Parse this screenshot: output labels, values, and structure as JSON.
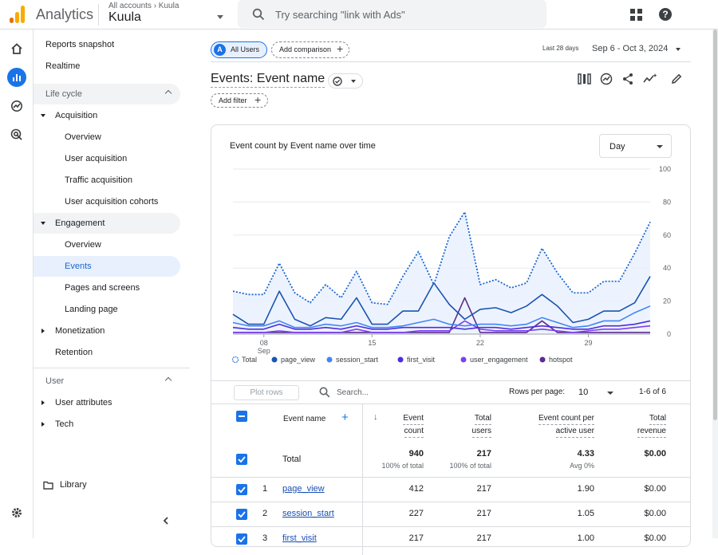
{
  "app": {
    "title": "Analytics",
    "breadcrumb": "All accounts › Kuula",
    "property": "Kuula"
  },
  "search": {
    "placeholder": "Try searching \"link with Ads\""
  },
  "sidebar": {
    "reports_snapshot": "Reports snapshot",
    "realtime": "Realtime",
    "lifecycle": "Life cycle",
    "acquisition": "Acquisition",
    "acq_overview": "Overview",
    "user_acquisition": "User acquisition",
    "traffic_acquisition": "Traffic acquisition",
    "cohorts": "User acquisition cohorts",
    "engagement": "Engagement",
    "eng_overview": "Overview",
    "events": "Events",
    "pages": "Pages and screens",
    "landing": "Landing page",
    "monetization": "Monetization",
    "retention": "Retention",
    "user": "User",
    "user_attributes": "User attributes",
    "tech": "Tech",
    "library": "Library"
  },
  "toolbar": {
    "segment_badge": "A",
    "segment": "All Users",
    "add_comparison": "Add comparison",
    "range_label": "Last 28 days",
    "range": "Sep 6 - Oct 3, 2024"
  },
  "report": {
    "title": "Events: Event name",
    "add_filter": "Add filter"
  },
  "chart_card": {
    "title": "Event count by Event name over time",
    "granularity": "Day"
  },
  "chart_data": {
    "type": "line",
    "title": "Event count by Event name over time",
    "x": [
      "Sep 6",
      "Sep 7",
      "Sep 8",
      "Sep 9",
      "Sep 10",
      "Sep 11",
      "Sep 12",
      "Sep 13",
      "Sep 14",
      "Sep 15",
      "Sep 16",
      "Sep 17",
      "Sep 18",
      "Sep 19",
      "Sep 20",
      "Sep 21",
      "Sep 22",
      "Sep 23",
      "Sep 24",
      "Sep 25",
      "Sep 26",
      "Sep 27",
      "Sep 28",
      "Sep 29",
      "Sep 30",
      "Oct 1",
      "Oct 2",
      "Oct 3"
    ],
    "xticks": [
      {
        "index": 2,
        "label": "08",
        "sub": "Sep"
      },
      {
        "index": 9,
        "label": "15",
        "sub": ""
      },
      {
        "index": 16,
        "label": "22",
        "sub": ""
      },
      {
        "index": 23,
        "label": "29",
        "sub": ""
      }
    ],
    "ylim": [
      0,
      100
    ],
    "yticks": [
      "100",
      "80",
      "60",
      "40",
      "20",
      "0"
    ],
    "series": [
      {
        "name": "Total",
        "style": "dotted",
        "color": "#1967d2",
        "values": [
          26,
          24,
          24,
          43,
          25,
          19,
          30,
          22,
          38,
          19,
          18,
          35,
          50,
          30,
          59,
          74,
          30,
          33,
          28,
          31,
          52,
          37,
          25,
          25,
          32,
          32,
          49,
          68
        ]
      },
      {
        "name": "page_view",
        "color": "#1a55b0",
        "values": [
          12,
          6,
          6,
          26,
          9,
          5,
          10,
          9,
          22,
          6,
          6,
          14,
          14,
          31,
          18,
          9,
          15,
          16,
          13,
          17,
          24,
          17,
          7,
          9,
          14,
          14,
          19,
          35
        ]
      },
      {
        "name": "session_start",
        "color": "#4285f4",
        "values": [
          7,
          5,
          5,
          8,
          4,
          4,
          6,
          5,
          7,
          4,
          4,
          5,
          7,
          9,
          6,
          5,
          6,
          6,
          5,
          6,
          10,
          7,
          4,
          5,
          8,
          8,
          13,
          17
        ]
      },
      {
        "name": "first_visit",
        "color": "#4b2fdb",
        "values": [
          4,
          3,
          3,
          6,
          3,
          3,
          4,
          3,
          5,
          3,
          3,
          4,
          4,
          4,
          4,
          3,
          4,
          4,
          3,
          4,
          5,
          4,
          3,
          3,
          5,
          5,
          6,
          8
        ]
      },
      {
        "name": "user_engagement",
        "color": "#7e3ff2",
        "values": [
          1,
          1,
          1,
          2,
          1,
          1,
          1,
          1,
          3,
          1,
          1,
          1,
          2,
          2,
          2,
          8,
          3,
          2,
          2,
          2,
          3,
          2,
          1,
          2,
          3,
          3,
          4,
          5
        ]
      },
      {
        "name": "hotspot",
        "color": "#5b2c8f",
        "values": [
          1,
          1,
          1,
          1,
          1,
          1,
          1,
          1,
          1,
          1,
          1,
          1,
          1,
          1,
          1,
          22,
          1,
          1,
          1,
          1,
          8,
          1,
          1,
          1,
          1,
          1,
          1,
          1
        ]
      }
    ]
  },
  "table": {
    "plot_rows": "Plot rows",
    "search_placeholder": "Search...",
    "rows_per_page_label": "Rows per page:",
    "rows_per_page": "10",
    "pagination": "1-6 of 6",
    "col_event_name": "Event name",
    "col_event_count": [
      "Event",
      "count"
    ],
    "col_total_users": [
      "Total",
      "users"
    ],
    "col_per_user": [
      "Event count per",
      "active user"
    ],
    "col_revenue": [
      "Total",
      "revenue"
    ],
    "totals": {
      "label": "Total",
      "event_count": "940",
      "event_count_sub": "100% of total",
      "total_users": "217",
      "total_users_sub": "100% of total",
      "per_user": "4.33",
      "per_user_sub": "Avg 0%",
      "revenue": "$0.00"
    },
    "rows": [
      {
        "n": "1",
        "name": "page_view",
        "event_count": "412",
        "total_users": "217",
        "per_user": "1.90",
        "revenue": "$0.00"
      },
      {
        "n": "2",
        "name": "session_start",
        "event_count": "227",
        "total_users": "217",
        "per_user": "1.05",
        "revenue": "$0.00"
      },
      {
        "n": "3",
        "name": "first_visit",
        "event_count": "217",
        "total_users": "217",
        "per_user": "1.00",
        "revenue": "$0.00"
      }
    ]
  }
}
